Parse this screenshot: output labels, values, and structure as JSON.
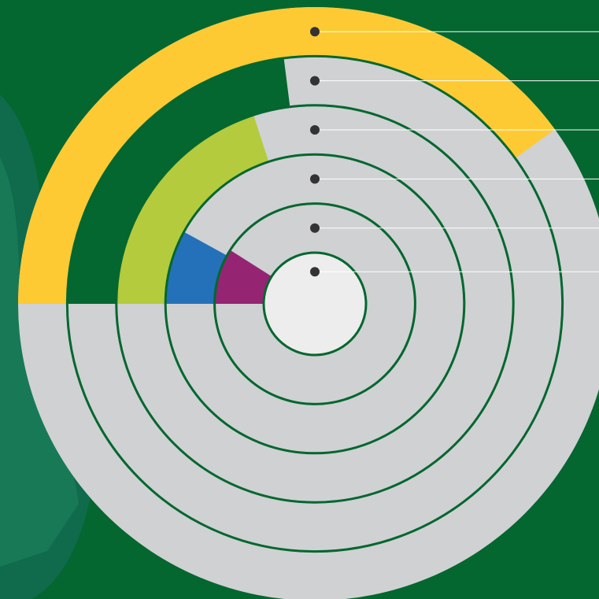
{
  "chart_data": {
    "type": "radial-bar",
    "ylim": [
      0,
      100
    ],
    "series": [
      {
        "color": "#fdca33",
        "values": [
          40
        ]
      },
      {
        "color": "#03672f",
        "values": [
          23
        ]
      },
      {
        "color": "#b3cb3c",
        "values": [
          20
        ]
      },
      {
        "color": "#2471b9",
        "values": [
          8
        ]
      },
      {
        "color": "#952572",
        "values": [
          9
        ]
      }
    ]
  }
}
